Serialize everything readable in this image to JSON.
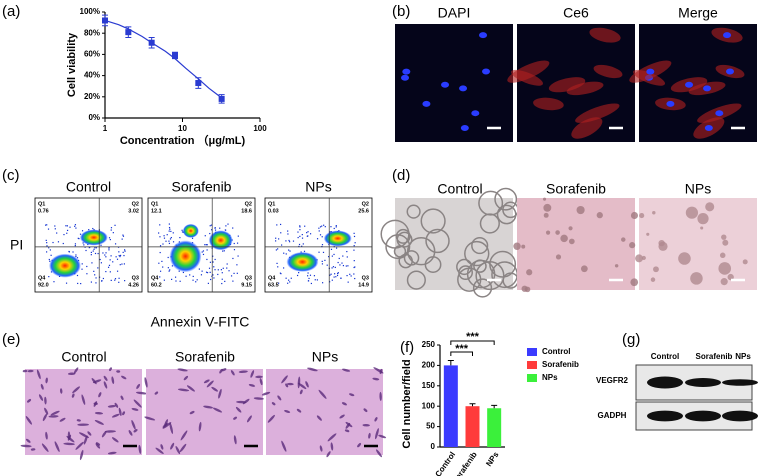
{
  "chart_data": [
    {
      "type": "line",
      "panel_label": "(a)",
      "xlabel": "Concentration （μg/mL)",
      "ylabel": "Cell viability",
      "log_x": true,
      "x": [
        1,
        2,
        4,
        8,
        16,
        32
      ],
      "values": [
        92,
        81,
        71,
        59,
        33,
        18
      ],
      "errors": [
        5,
        5,
        5,
        3,
        5,
        4
      ],
      "color": "#2a3bd1",
      "fit": {
        "x": [
          1,
          1.5,
          2,
          3,
          4,
          6,
          8,
          11,
          16,
          22,
          32
        ],
        "values": [
          92,
          88,
          84,
          77,
          71,
          63,
          56,
          47,
          37,
          28,
          19
        ]
      },
      "xlim": [
        1,
        100
      ],
      "xticks": [
        1,
        10,
        100
      ],
      "ylim": [
        0,
        100
      ],
      "yticks": [
        {
          "value": 0,
          "label": "0%"
        },
        {
          "value": 20,
          "label": "20%"
        },
        {
          "value": 40,
          "label": "40%"
        },
        {
          "value": 60,
          "label": "60%"
        },
        {
          "value": 80,
          "label": "80%"
        },
        {
          "value": 100,
          "label": "100%"
        }
      ]
    },
    {
      "type": "bar",
      "panel_label": "(f)",
      "ylabel": "Cell number/field",
      "categories": [
        "Control",
        "Sorafenib",
        "NPs"
      ],
      "values": [
        200,
        100,
        95
      ],
      "errors": [
        12,
        6,
        7
      ],
      "colors": [
        "#3b3bff",
        "#ff3b3b",
        "#3bf03b"
      ],
      "ylim": [
        0,
        250
      ],
      "yticks": [
        0,
        50,
        100,
        150,
        200,
        250
      ],
      "legend": "right",
      "annotations": [
        "***",
        "***"
      ]
    }
  ],
  "panels": {
    "b": {
      "label": "(b)",
      "columns": [
        "DAPI",
        "Ce6",
        "Merge"
      ]
    },
    "c": {
      "label": "(c)",
      "ylabel": "PI",
      "xlabel": "Annexin V-FITC",
      "quadrant_names": [
        "Q1",
        "Q2",
        "Q3",
        "Q4"
      ],
      "plots": [
        {
          "title": "Control",
          "quadrant_values": [
            "0.76",
            "3.02",
            "4.26",
            "92.0"
          ]
        },
        {
          "title": "Sorafenib",
          "quadrant_values": [
            "12.1",
            "18.6",
            "9.15",
            "60.2"
          ]
        },
        {
          "title": "NPs",
          "quadrant_values": [
            "0.03",
            "25.6",
            "14.9",
            "63.5"
          ]
        }
      ]
    },
    "d": {
      "label": "(d)",
      "columns": [
        "Control",
        "Sorafenib",
        "NPs"
      ]
    },
    "e": {
      "label": "(e)",
      "columns": [
        "Control",
        "Sorafenib",
        "NPs"
      ]
    },
    "g": {
      "label": "(g)",
      "columns": [
        "Control",
        "Sorafenib",
        "NPs"
      ],
      "rows": [
        "VEGFR2",
        "GADPH"
      ]
    }
  }
}
